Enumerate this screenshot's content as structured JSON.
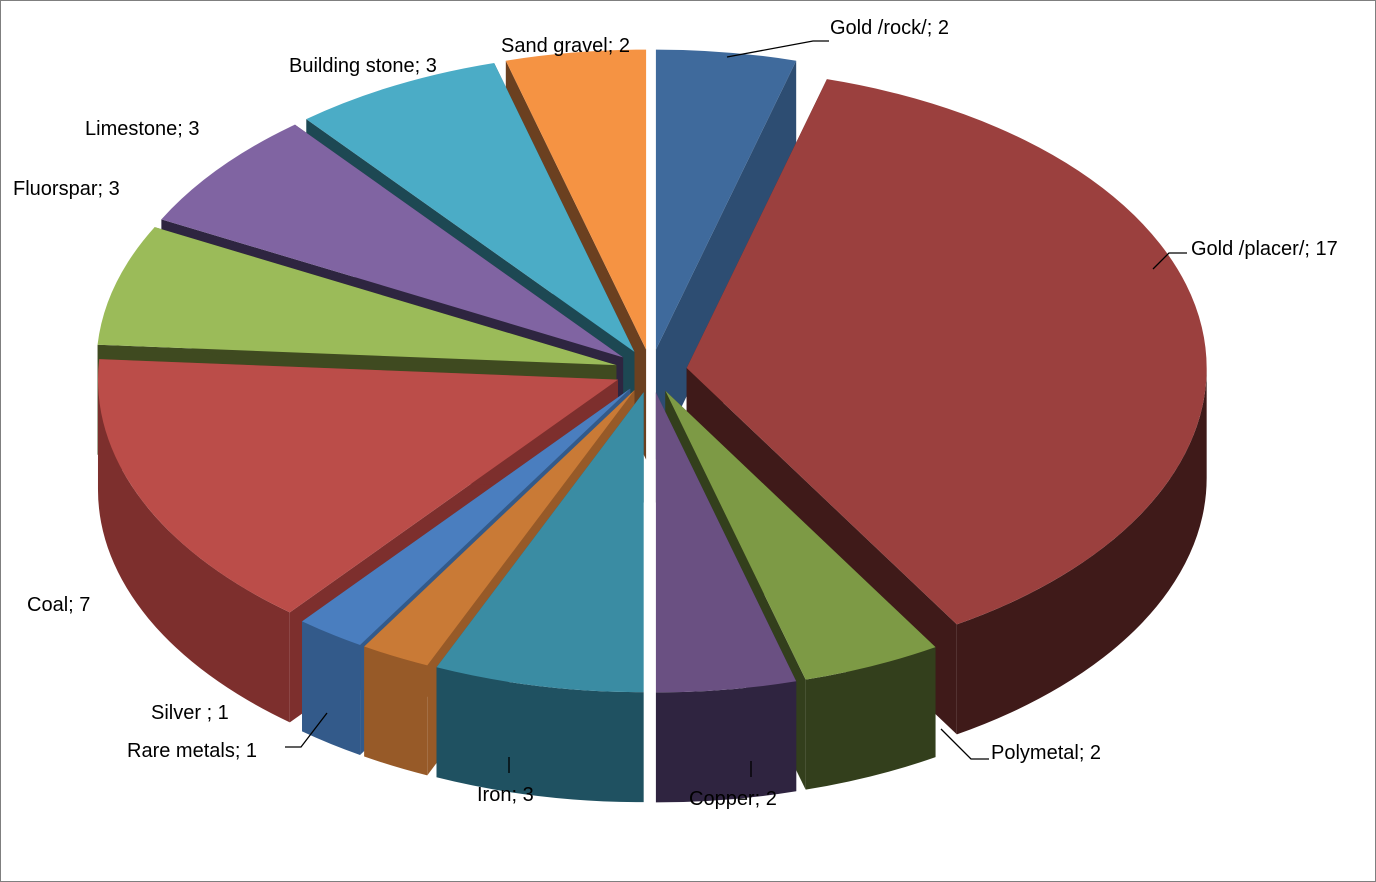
{
  "chart_data": {
    "type": "pie",
    "variant": "3d-exploded",
    "title": "",
    "legend": "none",
    "data_labels": "category; value",
    "slices": [
      {
        "category": "Gold /rock/",
        "label": "Gold /rock/; 2",
        "value": 2,
        "color": "#3f6a9c",
        "side": "#2d4d72"
      },
      {
        "category": "Gold /placer/",
        "label": "Gold /placer/; 17",
        "value": 17,
        "color": "#9b403e",
        "side": "#3f1a19"
      },
      {
        "category": "Polymetal",
        "label": "Polymetal; 2",
        "value": 2,
        "color": "#7d9a45",
        "side": "#333f1c"
      },
      {
        "category": "Copper",
        "label": "Copper; 2",
        "value": 2,
        "color": "#6a5082",
        "side": "#2f2440"
      },
      {
        "category": "Iron",
        "label": "Iron; 3",
        "value": 3,
        "color": "#3a8ca3",
        "side": "#1f5161"
      },
      {
        "category": "Rare metals",
        "label": "Rare metals; 1",
        "value": 1,
        "color": "#c97a36",
        "side": "#975a28"
      },
      {
        "category": "Silver",
        "label": "Silver ; 1",
        "value": 1,
        "color": "#4a7ebf",
        "side": "#335a8a"
      },
      {
        "category": "Coal",
        "label": "Coal; 7",
        "value": 7,
        "color": "#bb4d49",
        "side": "#7d2f2d"
      },
      {
        "category": "Fluorspar",
        "label": "Fluorspar; 3",
        "value": 3,
        "color": "#9bbb59",
        "side": "#3f4a20"
      },
      {
        "category": "Limestone",
        "label": "Limestone; 3",
        "value": 3,
        "color": "#8064a2",
        "side": "#2e2540"
      },
      {
        "category": "Building stone",
        "label": "Building stone; 3",
        "value": 3,
        "color": "#4bacc6",
        "side": "#1d4853"
      },
      {
        "category": "Sand gravel",
        "label": "Sand gravel; 2",
        "value": 2,
        "color": "#f59343",
        "side": "#6b4020"
      }
    ]
  }
}
